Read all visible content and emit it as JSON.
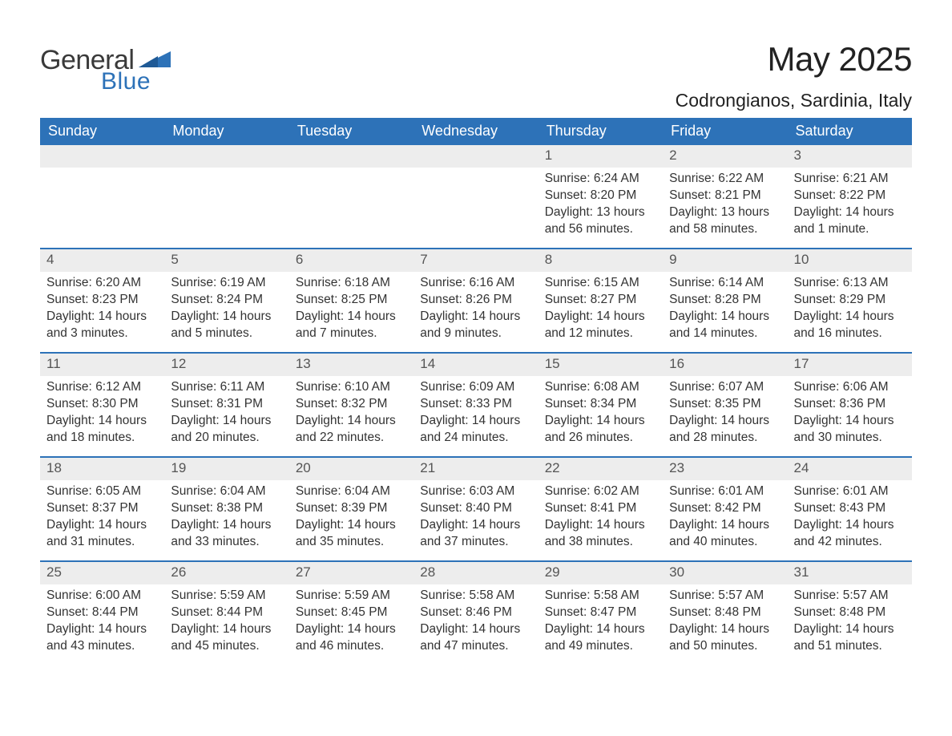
{
  "brand": {
    "general": "General",
    "blue": "Blue"
  },
  "colors": {
    "header_bg": "#2d72b8",
    "header_text": "#ffffff",
    "daynum_bg": "#ededed",
    "daynum_text": "#555555",
    "body_text": "#333333",
    "rule": "#2d72b8",
    "page_bg": "#ffffff",
    "logo_gray": "#3a3a3a",
    "logo_blue": "#2d72b8"
  },
  "title": "May 2025",
  "location": "Codrongianos, Sardinia, Italy",
  "daysOfWeek": [
    "Sunday",
    "Monday",
    "Tuesday",
    "Wednesday",
    "Thursday",
    "Friday",
    "Saturday"
  ],
  "labels": {
    "sunrise": "Sunrise:",
    "sunset": "Sunset:",
    "daylight": "Daylight:"
  },
  "weeks": [
    [
      null,
      null,
      null,
      null,
      {
        "n": "1",
        "sunrise": "6:24 AM",
        "sunset": "8:20 PM",
        "daylight": "13 hours and 56 minutes."
      },
      {
        "n": "2",
        "sunrise": "6:22 AM",
        "sunset": "8:21 PM",
        "daylight": "13 hours and 58 minutes."
      },
      {
        "n": "3",
        "sunrise": "6:21 AM",
        "sunset": "8:22 PM",
        "daylight": "14 hours and 1 minute."
      }
    ],
    [
      {
        "n": "4",
        "sunrise": "6:20 AM",
        "sunset": "8:23 PM",
        "daylight": "14 hours and 3 minutes."
      },
      {
        "n": "5",
        "sunrise": "6:19 AM",
        "sunset": "8:24 PM",
        "daylight": "14 hours and 5 minutes."
      },
      {
        "n": "6",
        "sunrise": "6:18 AM",
        "sunset": "8:25 PM",
        "daylight": "14 hours and 7 minutes."
      },
      {
        "n": "7",
        "sunrise": "6:16 AM",
        "sunset": "8:26 PM",
        "daylight": "14 hours and 9 minutes."
      },
      {
        "n": "8",
        "sunrise": "6:15 AM",
        "sunset": "8:27 PM",
        "daylight": "14 hours and 12 minutes."
      },
      {
        "n": "9",
        "sunrise": "6:14 AM",
        "sunset": "8:28 PM",
        "daylight": "14 hours and 14 minutes."
      },
      {
        "n": "10",
        "sunrise": "6:13 AM",
        "sunset": "8:29 PM",
        "daylight": "14 hours and 16 minutes."
      }
    ],
    [
      {
        "n": "11",
        "sunrise": "6:12 AM",
        "sunset": "8:30 PM",
        "daylight": "14 hours and 18 minutes."
      },
      {
        "n": "12",
        "sunrise": "6:11 AM",
        "sunset": "8:31 PM",
        "daylight": "14 hours and 20 minutes."
      },
      {
        "n": "13",
        "sunrise": "6:10 AM",
        "sunset": "8:32 PM",
        "daylight": "14 hours and 22 minutes."
      },
      {
        "n": "14",
        "sunrise": "6:09 AM",
        "sunset": "8:33 PM",
        "daylight": "14 hours and 24 minutes."
      },
      {
        "n": "15",
        "sunrise": "6:08 AM",
        "sunset": "8:34 PM",
        "daylight": "14 hours and 26 minutes."
      },
      {
        "n": "16",
        "sunrise": "6:07 AM",
        "sunset": "8:35 PM",
        "daylight": "14 hours and 28 minutes."
      },
      {
        "n": "17",
        "sunrise": "6:06 AM",
        "sunset": "8:36 PM",
        "daylight": "14 hours and 30 minutes."
      }
    ],
    [
      {
        "n": "18",
        "sunrise": "6:05 AM",
        "sunset": "8:37 PM",
        "daylight": "14 hours and 31 minutes."
      },
      {
        "n": "19",
        "sunrise": "6:04 AM",
        "sunset": "8:38 PM",
        "daylight": "14 hours and 33 minutes."
      },
      {
        "n": "20",
        "sunrise": "6:04 AM",
        "sunset": "8:39 PM",
        "daylight": "14 hours and 35 minutes."
      },
      {
        "n": "21",
        "sunrise": "6:03 AM",
        "sunset": "8:40 PM",
        "daylight": "14 hours and 37 minutes."
      },
      {
        "n": "22",
        "sunrise": "6:02 AM",
        "sunset": "8:41 PM",
        "daylight": "14 hours and 38 minutes."
      },
      {
        "n": "23",
        "sunrise": "6:01 AM",
        "sunset": "8:42 PM",
        "daylight": "14 hours and 40 minutes."
      },
      {
        "n": "24",
        "sunrise": "6:01 AM",
        "sunset": "8:43 PM",
        "daylight": "14 hours and 42 minutes."
      }
    ],
    [
      {
        "n": "25",
        "sunrise": "6:00 AM",
        "sunset": "8:44 PM",
        "daylight": "14 hours and 43 minutes."
      },
      {
        "n": "26",
        "sunrise": "5:59 AM",
        "sunset": "8:44 PM",
        "daylight": "14 hours and 45 minutes."
      },
      {
        "n": "27",
        "sunrise": "5:59 AM",
        "sunset": "8:45 PM",
        "daylight": "14 hours and 46 minutes."
      },
      {
        "n": "28",
        "sunrise": "5:58 AM",
        "sunset": "8:46 PM",
        "daylight": "14 hours and 47 minutes."
      },
      {
        "n": "29",
        "sunrise": "5:58 AM",
        "sunset": "8:47 PM",
        "daylight": "14 hours and 49 minutes."
      },
      {
        "n": "30",
        "sunrise": "5:57 AM",
        "sunset": "8:48 PM",
        "daylight": "14 hours and 50 minutes."
      },
      {
        "n": "31",
        "sunrise": "5:57 AM",
        "sunset": "8:48 PM",
        "daylight": "14 hours and 51 minutes."
      }
    ]
  ]
}
